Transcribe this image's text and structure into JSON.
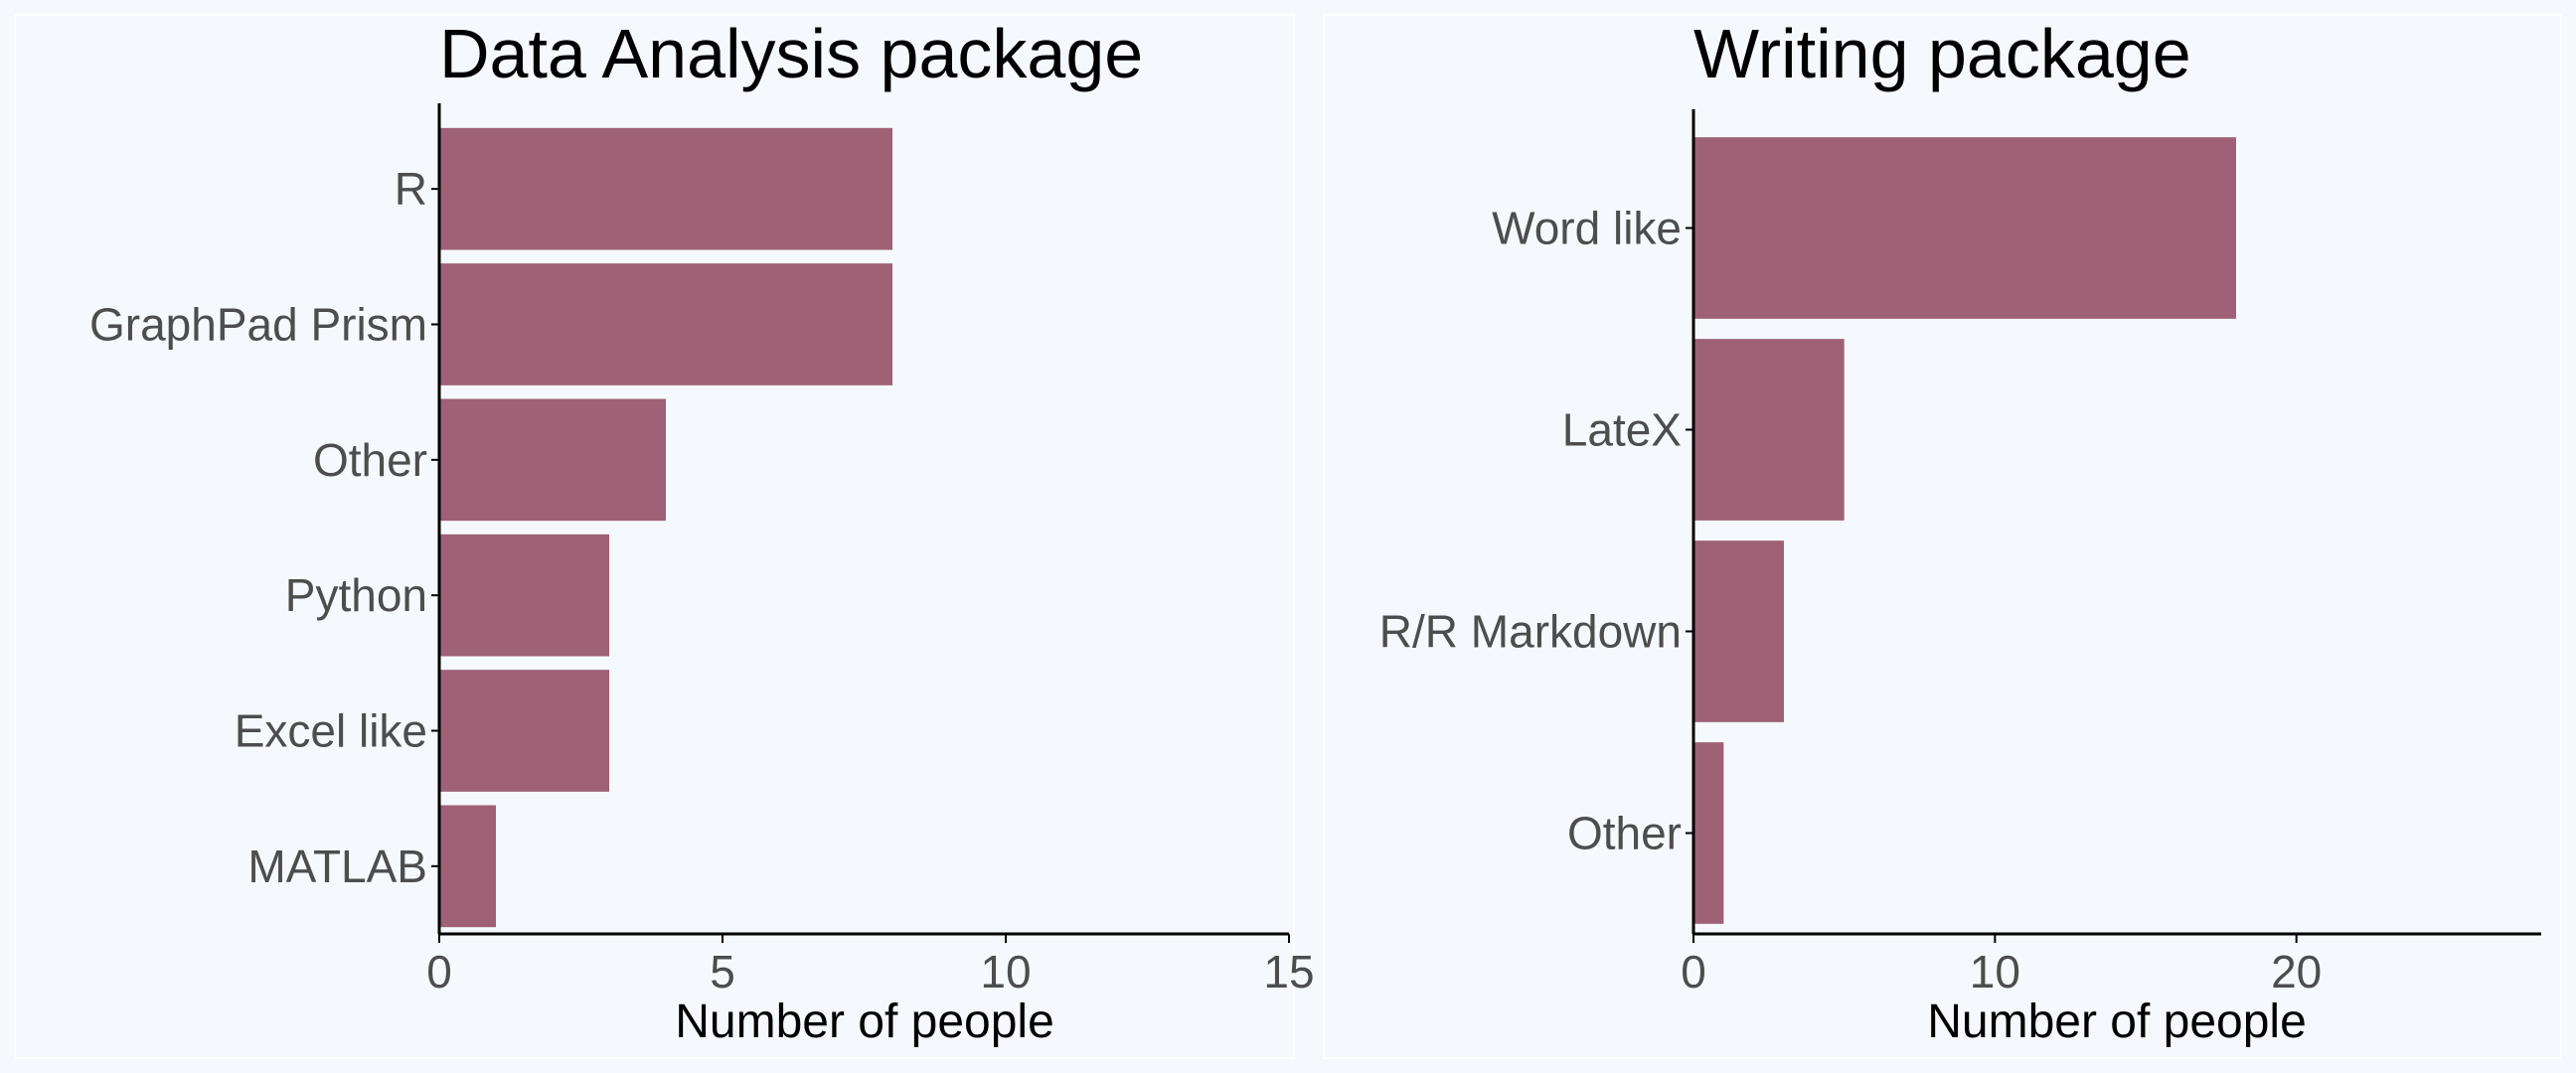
{
  "bar_color": "#9e6175",
  "background_color": "#f5f9fd",
  "chart_data": [
    {
      "type": "bar",
      "orientation": "horizontal",
      "title": "Data Analysis package",
      "xlabel": "Number of people",
      "ylabel": "",
      "categories": [
        "R",
        "GraphPad Prism",
        "Other",
        "Python",
        "Excel like",
        "MATLAB"
      ],
      "values": [
        8,
        8,
        4,
        3,
        3,
        1
      ],
      "xlim": [
        0,
        15
      ],
      "xticks": [
        0,
        5,
        10,
        15
      ],
      "grid": false,
      "legend": "none"
    },
    {
      "type": "bar",
      "orientation": "horizontal",
      "title": "Writing package",
      "xlabel": "Number of people",
      "ylabel": "",
      "categories": [
        "Word like",
        "LateX",
        "R/R Markdown",
        "Other"
      ],
      "values": [
        18,
        5,
        3,
        1
      ],
      "xlim": [
        0,
        24
      ],
      "xticks": [
        0,
        10,
        20
      ],
      "grid": false,
      "legend": "none"
    }
  ]
}
